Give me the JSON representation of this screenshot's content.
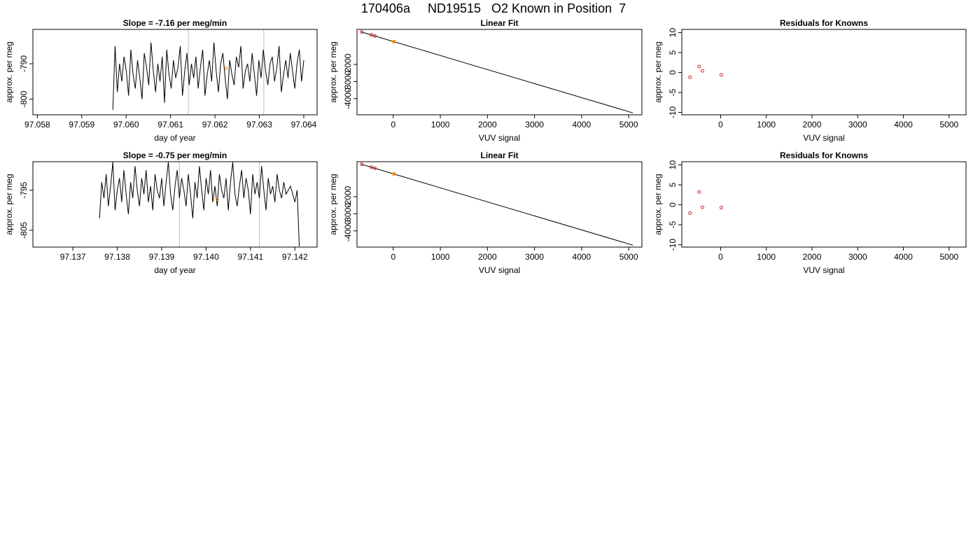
{
  "page": {
    "title": "170406a     ND19515   O2 Known in Position  7"
  },
  "colors": {
    "trace": "#000000",
    "known_point": "#d62728",
    "highlight_point": "#ff8c00",
    "marker_line": "#bfbfbf",
    "fit_line": "#000000"
  },
  "chart_data": [
    {
      "id": "trace-1",
      "type": "line",
      "title": "Slope =  -7.16  per meg/min",
      "xlabel": "day of year",
      "ylabel": "approx. per meg",
      "xlim": [
        97.0579,
        97.0643
      ],
      "ylim": [
        -804.4,
        -780.3
      ],
      "x_ticks": [
        97.058,
        97.059,
        97.06,
        97.061,
        97.062,
        97.063,
        97.064
      ],
      "x_tick_labels": [
        "97.058",
        "97.059",
        "97.060",
        "97.061",
        "97.062",
        "97.063",
        "97.064"
      ],
      "y_ticks": [
        -790,
        -800
      ],
      "y_tick_labels": [
        "-790",
        "-800"
      ],
      "marker_lines": [
        97.0614,
        97.0631
      ],
      "trace_x_range": [
        97.0597,
        97.064
      ],
      "trace_samples": [
        -803,
        -785,
        -798,
        -790,
        -795,
        -788,
        -792,
        -799,
        -786,
        -793,
        -797,
        -789,
        -794,
        -800,
        -787,
        -791,
        -796,
        -784,
        -792,
        -798,
        -790,
        -795,
        -788,
        -801,
        -786,
        -793,
        -797,
        -789,
        -794,
        -791,
        -785,
        -799,
        -792,
        -787,
        -796,
        -790,
        -794,
        -788,
        -797,
        -791,
        -786,
        -799,
        -793,
        -789,
        -795,
        -784,
        -792,
        -798,
        -790,
        -787,
        -794,
        -800,
        -789,
        -793,
        -796,
        -788,
        -791,
        -785,
        -797,
        -792,
        -790,
        -795,
        -787,
        -793,
        -799,
        -789,
        -794,
        -786,
        -792,
        -796,
        -790,
        -788,
        -795,
        -791,
        -785,
        -798,
        -793,
        -789,
        -794,
        -787,
        -792,
        -797,
        -790,
        -786,
        -795,
        -789
      ],
      "highlight_point": {
        "x": 97.06225,
        "y": -791.3
      }
    },
    {
      "id": "fit-1",
      "type": "scatter",
      "title": "Linear Fit",
      "xlabel": "VUV signal",
      "ylabel": "approx. per meg",
      "xlim": [
        -770,
        5280
      ],
      "ylim": [
        -4950,
        50
      ],
      "x_ticks": [
        0,
        1000,
        2000,
        3000,
        4000,
        5000
      ],
      "x_tick_labels": [
        "0",
        "1000",
        "2000",
        "3000",
        "4000",
        "5000"
      ],
      "y_ticks": [
        -2000,
        -3000,
        -4000
      ],
      "y_tick_labels": [
        "-2000",
        "-3000",
        "-4000"
      ],
      "fit_line": {
        "x": [
          -680,
          5090
        ],
        "y": [
          -100,
          -4840
        ]
      },
      "points": [
        {
          "x": -670,
          "y": -105
        },
        {
          "x": -465,
          "y": -270
        },
        {
          "x": -390,
          "y": -335
        },
        {
          "x": 15,
          "y": -665
        }
      ],
      "highlight_point": {
        "x": 15,
        "y": -665
      }
    },
    {
      "id": "resid-1",
      "type": "scatter",
      "title": "Residuals for Knowns",
      "xlabel": "VUV signal",
      "ylabel": "approx. per meg",
      "xlim": [
        -850,
        5370
      ],
      "ylim": [
        -10.6,
        10.8
      ],
      "x_ticks": [
        0,
        1000,
        2000,
        3000,
        4000,
        5000
      ],
      "x_tick_labels": [
        "0",
        "1000",
        "2000",
        "3000",
        "4000",
        "5000"
      ],
      "y_ticks": [
        10,
        5,
        0,
        -5,
        -10
      ],
      "y_tick_labels": [
        "10",
        "5",
        "0",
        "-5",
        "-10"
      ],
      "points": [
        {
          "x": -670,
          "y": -1.2
        },
        {
          "x": -470,
          "y": 1.5
        },
        {
          "x": -400,
          "y": 0.4
        },
        {
          "x": 15,
          "y": -0.6
        }
      ]
    },
    {
      "id": "trace-2",
      "type": "line",
      "title": "Slope =  -0.75  per meg/min",
      "xlabel": "day of year",
      "ylabel": "approx. per meg",
      "xlim": [
        97.1361,
        97.1425
      ],
      "ylim": [
        -809.2,
        -787.9
      ],
      "x_ticks": [
        97.137,
        97.138,
        97.139,
        97.14,
        97.141,
        97.142
      ],
      "x_tick_labels": [
        "97.137",
        "97.138",
        "97.139",
        "97.140",
        "97.141",
        "97.142"
      ],
      "y_ticks": [
        -795,
        -805
      ],
      "y_tick_labels": [
        "-795",
        "-805"
      ],
      "marker_lines": [
        97.1394,
        97.1412
      ],
      "trace_x_range": [
        97.1376,
        97.1421
      ],
      "trace_samples": [
        -802,
        -793,
        -797,
        -791,
        -799,
        -794,
        -788,
        -800,
        -795,
        -792,
        -798,
        -790,
        -796,
        -801,
        -793,
        -797,
        -789,
        -795,
        -799,
        -792,
        -796,
        -790,
        -798,
        -794,
        -800,
        -791,
        -795,
        -797,
        -792,
        -799,
        -793,
        -788,
        -796,
        -800,
        -794,
        -790,
        -797,
        -792,
        -795,
        -799,
        -791,
        -796,
        -802,
        -793,
        -797,
        -789,
        -795,
        -800,
        -792,
        -796,
        -790,
        -798,
        -794,
        -799,
        -791,
        -795,
        -797,
        -792,
        -800,
        -793,
        -788,
        -796,
        -799,
        -794,
        -790,
        -797,
        -792,
        -795,
        -801,
        -791,
        -796,
        -793,
        -797,
        -789,
        -795,
        -800,
        -792,
        -796,
        -794,
        -798,
        -791,
        -795,
        -797,
        -793,
        -796,
        -795,
        -794,
        -796,
        -798,
        -795,
        -809
      ],
      "highlight_point": {
        "x": 97.14025,
        "y": -797.3
      }
    },
    {
      "id": "fit-2",
      "type": "scatter",
      "title": "Linear Fit",
      "xlabel": "VUV signal",
      "ylabel": "approx. per meg",
      "xlim": [
        -770,
        5280
      ],
      "ylim": [
        -4950,
        50
      ],
      "x_ticks": [
        0,
        1000,
        2000,
        3000,
        4000,
        5000
      ],
      "x_tick_labels": [
        "0",
        "1000",
        "2000",
        "3000",
        "4000",
        "5000"
      ],
      "y_ticks": [
        -2000,
        -3000,
        -4000
      ],
      "y_tick_labels": [
        "-2000",
        "-3000",
        "-4000"
      ],
      "fit_line": {
        "x": [
          -680,
          5090
        ],
        "y": [
          -100,
          -4840
        ]
      },
      "points": [
        {
          "x": -670,
          "y": -105
        },
        {
          "x": -465,
          "y": -270
        },
        {
          "x": -390,
          "y": -335
        },
        {
          "x": 15,
          "y": -665
        }
      ],
      "highlight_point": {
        "x": 15,
        "y": -665
      }
    },
    {
      "id": "resid-2",
      "type": "scatter",
      "title": "Residuals for Knowns",
      "xlabel": "VUV signal",
      "ylabel": "approx. per meg",
      "xlim": [
        -850,
        5370
      ],
      "ylim": [
        -10.6,
        10.8
      ],
      "x_ticks": [
        0,
        1000,
        2000,
        3000,
        4000,
        5000
      ],
      "x_tick_labels": [
        "0",
        "1000",
        "2000",
        "3000",
        "4000",
        "5000"
      ],
      "y_ticks": [
        10,
        5,
        0,
        -5,
        -10
      ],
      "y_tick_labels": [
        "10",
        "5",
        "0",
        "-5",
        "-10"
      ],
      "points": [
        {
          "x": -670,
          "y": -2.1
        },
        {
          "x": -470,
          "y": 3.2
        },
        {
          "x": -400,
          "y": -0.6
        },
        {
          "x": 15,
          "y": -0.7
        }
      ]
    }
  ]
}
